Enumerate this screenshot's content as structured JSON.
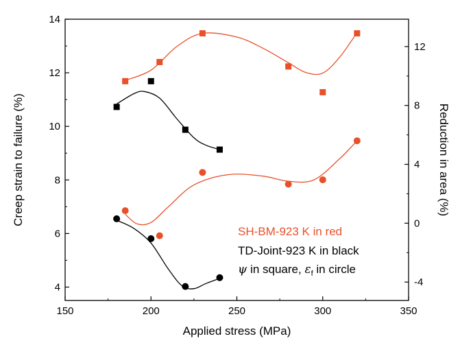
{
  "chart_data": {
    "type": "scatter",
    "xlabel": "Applied stress (MPa)",
    "ylabel_left": "Creep strain to failure (%)",
    "ylabel_right": "Reduction in area (%)",
    "xlim": [
      150,
      350
    ],
    "ylim_left": [
      3.5,
      14
    ],
    "ylim_right": [
      -5.25,
      13.86
    ],
    "x_ticks": [
      "150",
      "200",
      "250",
      "300",
      "350"
    ],
    "y_left_ticks": [
      "4",
      "6",
      "8",
      "10",
      "12",
      "14"
    ],
    "y_right_ticks": [
      "-4",
      "0",
      "4",
      "8",
      "12"
    ],
    "grid": false,
    "legend": {
      "position": "bottom-right",
      "line1": "SH-BM-923 K in red",
      "line2": "TD-Joint-923 K in black",
      "line3_psi": "ψ",
      "line3_mid": " in square, ",
      "line3_eps": "ε",
      "line3_sub": "f",
      "line3_end": " in circle"
    },
    "colors": {
      "red": "#e8502a",
      "black": "#000000"
    },
    "series": [
      {
        "axis": "right",
        "marker": "square",
        "color": "#e8502a",
        "x": [
          185,
          205,
          230,
          280,
          300,
          320
        ],
        "y": [
          9.65,
          10.95,
          12.9,
          10.65,
          8.9,
          12.9
        ]
      },
      {
        "axis": "right",
        "marker": "square",
        "color": "#000000",
        "x": [
          180,
          200,
          220,
          240
        ],
        "y": [
          7.9,
          9.65,
          6.35,
          5.0
        ]
      },
      {
        "axis": "right",
        "marker": "circle",
        "color": "#e8502a",
        "x": [
          185,
          205,
          230,
          280,
          300,
          320
        ],
        "y": [
          0.85,
          -0.85,
          3.45,
          2.65,
          2.95,
          5.6
        ]
      },
      {
        "axis": "right",
        "marker": "circle",
        "color": "#000000",
        "x": [
          180,
          200,
          220,
          240
        ],
        "y": [
          0.3,
          -1.05,
          -4.3,
          -3.7
        ]
      }
    ],
    "fits": [
      {
        "color": "#e8502a",
        "x": [
          185,
          200,
          215,
          230,
          250,
          265,
          280,
          290,
          300,
          310,
          320
        ],
        "y": [
          9.7,
          10.4,
          12.0,
          12.9,
          12.65,
          11.9,
          10.9,
          10.25,
          10.2,
          11.3,
          12.95
        ]
      },
      {
        "color": "#000000",
        "x": [
          180,
          190,
          196,
          205,
          215,
          225,
          232,
          240
        ],
        "y": [
          8.1,
          8.8,
          8.95,
          8.5,
          7.1,
          5.8,
          5.3,
          5.0
        ]
      },
      {
        "color": "#e8502a",
        "x": [
          185,
          192,
          200,
          210,
          225,
          245,
          265,
          280,
          295,
          310,
          320
        ],
        "y": [
          0.6,
          -0.05,
          0.05,
          1.1,
          2.6,
          3.3,
          3.2,
          2.85,
          2.95,
          4.4,
          5.6
        ]
      },
      {
        "color": "#000000",
        "x": [
          180,
          190,
          200,
          210,
          218,
          225,
          232,
          240
        ],
        "y": [
          0.2,
          -0.35,
          -1.35,
          -3.1,
          -4.25,
          -4.45,
          -4.1,
          -3.75
        ]
      }
    ]
  }
}
